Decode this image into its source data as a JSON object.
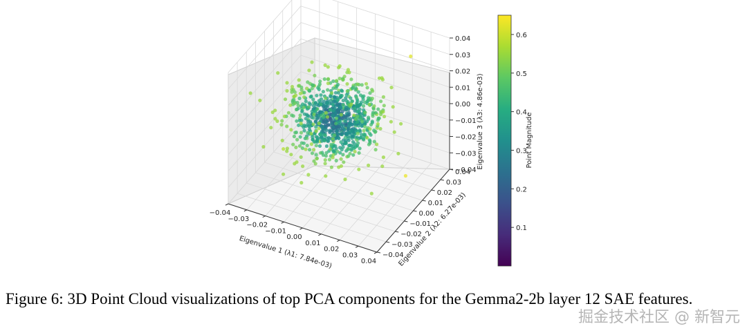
{
  "chart_data": {
    "type": "scatter",
    "projection": "3d",
    "x_label": "Eigenvalue 1 (λ1: 7.84e-03)",
    "y_label": "Eigenvalue 2 (λ2: 6.27e-03)",
    "z_label": "Eigenvalue 3 (λ3: 4.86e-03)",
    "x_ticks": [
      "−0.04",
      "−0.03",
      "−0.02",
      "−0.01",
      "0.00",
      "0.01",
      "0.02",
      "0.03",
      "0.04"
    ],
    "y_ticks": [
      "−0.04",
      "−0.03",
      "−0.02",
      "−0.01",
      "0.00",
      "0.01",
      "0.02",
      "0.03",
      "0.04"
    ],
    "z_ticks": [
      "−0.04",
      "−0.03",
      "−0.02",
      "−0.01",
      "0.00",
      "0.01",
      "0.02",
      "0.03",
      "0.04"
    ],
    "xlim": [
      -0.04,
      0.04
    ],
    "ylim": [
      -0.04,
      0.04
    ],
    "zlim": [
      -0.04,
      0.04
    ],
    "colorbar": {
      "label": "Point Magnitude",
      "colormap": "viridis",
      "range": [
        0.0,
        0.65
      ],
      "ticks": [
        "0.1",
        "0.2",
        "0.3",
        "0.4",
        "0.5",
        "0.6"
      ]
    },
    "cloud": {
      "center": [
        -0.002,
        0.0,
        0.0
      ],
      "spread": [
        0.011,
        0.011,
        0.009
      ],
      "point_count": 900,
      "magnitude_range": [
        0.15,
        0.55
      ]
    },
    "outliers": [
      {
        "x": 0.022,
        "y": 0.034,
        "z": 0.026,
        "magnitude": 0.62
      },
      {
        "x": -0.025,
        "y": -0.01,
        "z": -0.02,
        "magnitude": 0.58
      },
      {
        "x": 0.005,
        "y": 0.0,
        "z": 0.033,
        "magnitude": 0.55
      },
      {
        "x": 0.03,
        "y": 0.012,
        "z": -0.03,
        "magnitude": 0.63
      }
    ]
  },
  "caption": "Figure 6: 3D Point Cloud visualizations of top PCA components for the Gemma2-2b layer 12 SAE features.",
  "watermark": "掘金技术社区 @ 新智元"
}
